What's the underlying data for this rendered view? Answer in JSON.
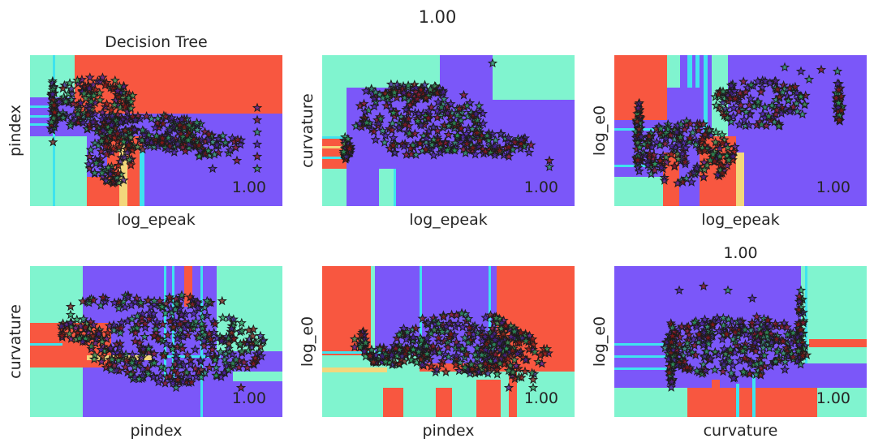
{
  "suptitle": "1.00",
  "colors": {
    "purple": "#7b57f9",
    "red": "#f85740",
    "teal": "#80f4cf",
    "cyan": "#3fe3ee",
    "yellow": "#f3d77c",
    "marker_edge": "#1c1c1c",
    "text": "#262626"
  },
  "chart_data": [
    {
      "type": "scatter",
      "title": "Decision Tree",
      "xlabel": "log_epeak",
      "ylabel": "pindex",
      "score": "1.00",
      "marker": "star",
      "grid": false,
      "background": "decision-regions"
    },
    {
      "type": "scatter",
      "title": "",
      "xlabel": "log_epeak",
      "ylabel": "curvature",
      "score": "1.00",
      "marker": "star",
      "grid": false,
      "background": "decision-regions"
    },
    {
      "type": "scatter",
      "title": "",
      "xlabel": "log_epeak",
      "ylabel": "log_e0",
      "score": "1.00",
      "marker": "star",
      "grid": false,
      "background": "decision-regions"
    },
    {
      "type": "scatter",
      "title": "",
      "xlabel": "pindex",
      "ylabel": "curvature",
      "score": "1.00",
      "marker": "star",
      "grid": false,
      "background": "decision-regions"
    },
    {
      "type": "scatter",
      "title": "",
      "xlabel": "pindex",
      "ylabel": "log_e0",
      "score": "1.00",
      "marker": "star",
      "grid": false,
      "background": "decision-regions"
    },
    {
      "type": "scatter",
      "title": "1.00",
      "xlabel": "curvature",
      "ylabel": "log_e0",
      "score": "1.00",
      "marker": "star",
      "grid": false,
      "background": "decision-regions"
    }
  ]
}
